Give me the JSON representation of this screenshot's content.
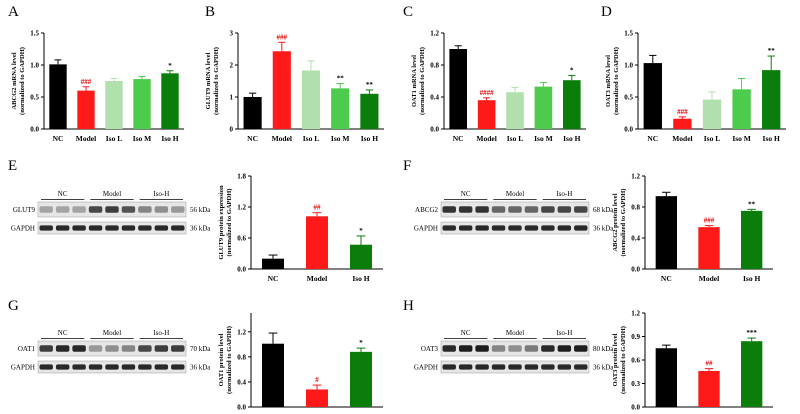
{
  "panel_labels": [
    "A",
    "B",
    "C",
    "D",
    "E",
    "F",
    "G",
    "H"
  ],
  "colors": {
    "NC": "#000000",
    "Model": "#ff1a1a",
    "Iso L": "#b2e0ad",
    "Iso M": "#4ccb4c",
    "Iso H": "#0a7d0a"
  },
  "chart_data": [
    {
      "panel": "A",
      "type": "bar",
      "categories": [
        "NC",
        "Model",
        "Iso L",
        "Iso M",
        "Iso H"
      ],
      "values": [
        1.01,
        0.6,
        0.75,
        0.78,
        0.87
      ],
      "errors": [
        0.07,
        0.06,
        0.04,
        0.04,
        0.04
      ],
      "significance": [
        "",
        "###",
        "",
        "",
        "*"
      ],
      "ylabel_lines": [
        "ABCG2 mRNA level",
        "(normalized to GAPDH)"
      ],
      "ylim": [
        0,
        1.5
      ],
      "yticks": [
        "0.0",
        "0.5",
        "1.0",
        "1.5"
      ]
    },
    {
      "panel": "B",
      "type": "bar",
      "categories": [
        "NC",
        "Model",
        "Iso L",
        "Iso M",
        "Iso H"
      ],
      "values": [
        1.0,
        2.43,
        1.83,
        1.27,
        1.1
      ],
      "errors": [
        0.12,
        0.28,
        0.3,
        0.15,
        0.12
      ],
      "significance": [
        "",
        "###",
        "",
        "**",
        "**"
      ],
      "ylabel_lines": [
        "GLUT9 mRNA level",
        "(normalized to GAPDH)"
      ],
      "ylim": [
        0,
        3
      ],
      "yticks": [
        "0",
        "1",
        "2",
        "3"
      ]
    },
    {
      "panel": "C",
      "type": "bar",
      "categories": [
        "NC",
        "Model",
        "Iso L",
        "Iso M",
        "Iso H"
      ],
      "values": [
        1.0,
        0.36,
        0.46,
        0.53,
        0.61
      ],
      "errors": [
        0.04,
        0.03,
        0.06,
        0.05,
        0.06
      ],
      "significance": [
        "",
        "####",
        "",
        "",
        "*"
      ],
      "ylabel_lines": [
        "OAT1 mRNA level",
        "(normalized to GAPDH)"
      ],
      "ylim": [
        0,
        1.2
      ],
      "yticks": [
        "0.0",
        "0.4",
        "0.8",
        "1.2"
      ]
    },
    {
      "panel": "D",
      "type": "bar",
      "categories": [
        "NC",
        "Model",
        "Iso L",
        "Iso M",
        "Iso H"
      ],
      "values": [
        1.03,
        0.16,
        0.46,
        0.62,
        0.92
      ],
      "errors": [
        0.12,
        0.03,
        0.12,
        0.17,
        0.22
      ],
      "significance": [
        "",
        "###",
        "",
        "",
        "**"
      ],
      "ylabel_lines": [
        "OAT3 mRNA level",
        "(normalized to GAPDH)"
      ],
      "ylim": [
        0,
        1.5
      ],
      "yticks": [
        "0.0",
        "0.5",
        "1.0",
        "1.5"
      ]
    },
    {
      "panel": "E",
      "type": "bar",
      "categories": [
        "NC",
        "Model",
        "Iso H"
      ],
      "values": [
        0.2,
        1.02,
        0.47
      ],
      "errors": [
        0.07,
        0.07,
        0.17
      ],
      "significance": [
        "",
        "##",
        "*"
      ],
      "ylabel_lines": [
        "GLUT9 protein expression",
        "(normalized to GAPDH)"
      ],
      "ylim": [
        0,
        1.8
      ],
      "yticks": [
        "0.0",
        "0.6",
        "1.2",
        "1.8"
      ]
    },
    {
      "panel": "F",
      "type": "bar",
      "categories": [
        "NC",
        "Model",
        "Iso H"
      ],
      "values": [
        0.94,
        0.54,
        0.75
      ],
      "errors": [
        0.05,
        0.02,
        0.02
      ],
      "significance": [
        "",
        "###",
        "**"
      ],
      "ylabel_lines": [
        "ABCG2 protein level",
        "(normalized to GAPDH)"
      ],
      "ylim": [
        0,
        1.2
      ],
      "yticks": [
        "0.0",
        "0.4",
        "0.8",
        "1.2"
      ]
    },
    {
      "panel": "G",
      "type": "bar",
      "categories": [
        "NC",
        "Model",
        "Iso H"
      ],
      "values": [
        1.01,
        0.28,
        0.88
      ],
      "errors": [
        0.17,
        0.07,
        0.06
      ],
      "significance": [
        "",
        "#",
        "*"
      ],
      "ylabel_lines": [
        "OAT1 protein level",
        "(normalized to GAPDH)"
      ],
      "ylim": [
        0,
        1.5
      ],
      "yticks": [
        "0.0",
        "0.4",
        "0.8",
        "1.2"
      ]
    },
    {
      "panel": "H",
      "type": "bar",
      "categories": [
        "NC",
        "Model",
        "Iso H"
      ],
      "values": [
        0.75,
        0.46,
        0.84
      ],
      "errors": [
        0.04,
        0.03,
        0.04
      ],
      "significance": [
        "",
        "##",
        "***"
      ],
      "ylabel_lines": [
        "OAT3 protein level",
        "(normalized to GAPDH)"
      ],
      "ylim": [
        0,
        1.2
      ],
      "yticks": [
        "0.0",
        "0.3",
        "0.6",
        "0.9",
        "1.2"
      ]
    }
  ],
  "western_blots": [
    {
      "panel": "E",
      "groups": [
        "NC",
        "Model",
        "Iso-H"
      ],
      "rows": [
        {
          "label": "GLUT9",
          "kda": "56 kDa",
          "lanes": [
            0.3,
            0.3,
            0.3,
            0.75,
            0.8,
            0.7,
            0.45,
            0.4,
            0.35
          ]
        },
        {
          "label": "GAPDH",
          "kda": "36 kDa",
          "lanes": [
            0.9,
            0.9,
            0.9,
            0.9,
            0.9,
            0.9,
            0.9,
            0.9,
            0.9
          ]
        }
      ]
    },
    {
      "panel": "F",
      "groups": [
        "NC",
        "Model",
        "Iso-H"
      ],
      "rows": [
        {
          "label": "ABCG2",
          "kda": "68 kDa",
          "lanes": [
            0.85,
            0.85,
            0.85,
            0.6,
            0.6,
            0.6,
            0.75,
            0.75,
            0.75
          ]
        },
        {
          "label": "GAPDH",
          "kda": "36 kDa",
          "lanes": [
            0.9,
            0.9,
            0.9,
            0.9,
            0.9,
            0.9,
            0.9,
            0.9,
            0.9
          ]
        }
      ]
    },
    {
      "panel": "G",
      "groups": [
        "NC",
        "Model",
        "Iso-H"
      ],
      "rows": [
        {
          "label": "OAT1",
          "kda": "70 kDa",
          "lanes": [
            0.8,
            0.9,
            0.9,
            0.35,
            0.4,
            0.45,
            0.75,
            0.8,
            0.8
          ]
        },
        {
          "label": "GAPDH",
          "kda": "36 kDa",
          "lanes": [
            0.9,
            0.9,
            0.9,
            0.9,
            0.9,
            0.9,
            0.9,
            0.9,
            0.9
          ]
        }
      ]
    },
    {
      "panel": "H",
      "groups": [
        "NC",
        "Model",
        "Iso-H"
      ],
      "rows": [
        {
          "label": "OAT3",
          "kda": "80 kDa",
          "lanes": [
            0.9,
            0.95,
            0.95,
            0.45,
            0.4,
            0.5,
            0.9,
            0.95,
            0.95
          ]
        },
        {
          "label": "GAPDH",
          "kda": "36 kDa",
          "lanes": [
            0.9,
            0.9,
            0.9,
            0.9,
            0.9,
            0.9,
            0.9,
            0.9,
            0.9
          ]
        }
      ]
    }
  ]
}
